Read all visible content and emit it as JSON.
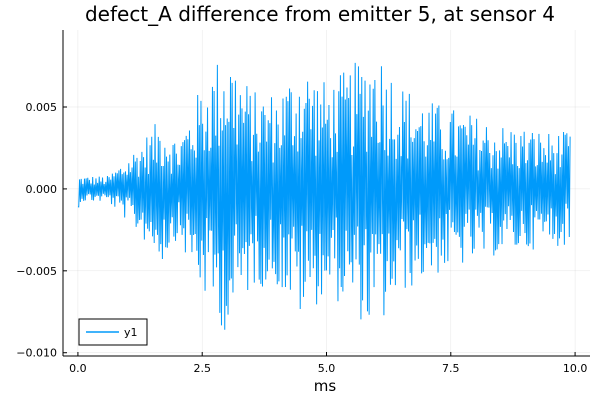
{
  "chart_data": {
    "type": "line",
    "title": "defect_A difference from emitter 5, at sensor 4",
    "xlabel": "ms",
    "ylabel": "",
    "xlim": [
      -0.3,
      10.3
    ],
    "ylim": [
      -0.0102,
      0.0097
    ],
    "xticks": [
      0.0,
      2.5,
      5.0,
      7.5,
      10.0
    ],
    "xtick_labels": [
      "0.0",
      "2.5",
      "5.0",
      "7.5",
      "10.0"
    ],
    "yticks": [
      -0.01,
      -0.005,
      0.0,
      0.005
    ],
    "ytick_labels": [
      "−0.010",
      "−0.005",
      "0.000",
      "0.005"
    ],
    "grid": true,
    "legend_position": "bottom-left",
    "series": [
      {
        "name": "y1",
        "color": "#009AFA",
        "x_start": 0.0,
        "x_step": 0.0165,
        "envelope_points_x": [
          0.0,
          0.6,
          1.0,
          1.7,
          2.0,
          2.5,
          2.7,
          3.0,
          3.5,
          4.0,
          4.5,
          5.0,
          5.5,
          6.0,
          6.5,
          7.0,
          7.5,
          8.0,
          8.5,
          9.0,
          9.5,
          9.9
        ],
        "envelope_points_y": [
          0.0008,
          0.0008,
          0.002,
          0.0045,
          0.003,
          0.0065,
          0.0075,
          0.009,
          0.006,
          0.006,
          0.008,
          0.0065,
          0.0075,
          0.009,
          0.0065,
          0.0055,
          0.005,
          0.0045,
          0.004,
          0.0038,
          0.0035,
          0.0035
        ]
      }
    ]
  }
}
